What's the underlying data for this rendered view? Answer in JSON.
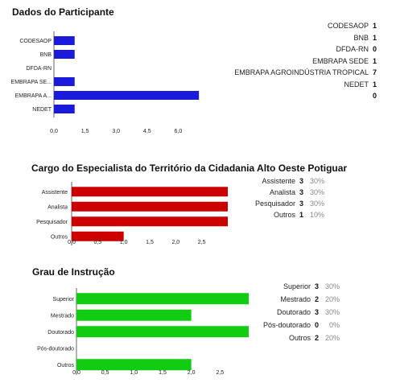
{
  "chart_data": [
    {
      "type": "bar",
      "orientation": "horizontal",
      "title": "Dados do Participante",
      "categories": [
        "CODESAOP",
        "BNB",
        "DFDA-RN",
        "EMBRAPA SE...",
        "EMBRAPA A...",
        "NEDET"
      ],
      "values": [
        1,
        1,
        0,
        1,
        7,
        1
      ],
      "color": "#1a1adb",
      "xlim": [
        0,
        7.5
      ],
      "xticks": [
        "0,0",
        "1,5",
        "3,0",
        "4,5",
        "6,0"
      ],
      "xtick_values": [
        0,
        1.5,
        3,
        4.5,
        6
      ],
      "legend": [
        {
          "name": "CODESAOP",
          "count": "1"
        },
        {
          "name": "BNB",
          "count": "1"
        },
        {
          "name": "DFDA-RN",
          "count": "0"
        },
        {
          "name": "EMBRAPA SEDE",
          "count": "1"
        },
        {
          "name": "EMBRAPA AGROINDÚSTRIA TROPICAL",
          "count": "7"
        },
        {
          "name": "NEDET",
          "count": "1"
        },
        {
          "name": "",
          "count": "0"
        }
      ]
    },
    {
      "type": "bar",
      "orientation": "horizontal",
      "title": "Cargo do Especialista do Território da Cidadania Alto Oeste Potiguar",
      "categories": [
        "Assistente",
        "Analista",
        "Pesquisador",
        "Outros"
      ],
      "values": [
        3,
        3,
        3,
        1
      ],
      "color": "#cc0000",
      "xlim": [
        0,
        3
      ],
      "xticks": [
        "0,0",
        "0,5",
        "1,0",
        "1,5",
        "2,0",
        "2,5"
      ],
      "xtick_values": [
        0,
        0.5,
        1,
        1.5,
        2,
        2.5
      ],
      "legend": [
        {
          "name": "Assistente",
          "count": "3",
          "pct": "30%"
        },
        {
          "name": "Analista",
          "count": "3",
          "pct": "30%"
        },
        {
          "name": "Pesquisador",
          "count": "3",
          "pct": "30%"
        },
        {
          "name": "Outros",
          "count": "1",
          "pct": "10%"
        }
      ]
    },
    {
      "type": "bar",
      "orientation": "horizontal",
      "title": "Grau de Instrução",
      "categories": [
        "Superior",
        "Mestrado",
        "Doutorado",
        "Pós-doutorado",
        "Outros"
      ],
      "values": [
        3,
        2,
        3,
        0,
        2
      ],
      "color": "#11cc11",
      "xlim": [
        0,
        3
      ],
      "xticks": [
        "0,0",
        "0,5",
        "1,0",
        "1,5",
        "2,0",
        "2,5"
      ],
      "xtick_values": [
        0,
        0.5,
        1,
        1.5,
        2,
        2.5
      ],
      "legend": [
        {
          "name": "Superior",
          "count": "3",
          "pct": "30%"
        },
        {
          "name": "Mestrado",
          "count": "2",
          "pct": "20%"
        },
        {
          "name": "Doutorado",
          "count": "3",
          "pct": "30%"
        },
        {
          "name": "Pós-doutorado",
          "count": "0",
          "pct": "0%"
        },
        {
          "name": "Outros",
          "count": "2",
          "pct": "20%"
        }
      ]
    }
  ]
}
